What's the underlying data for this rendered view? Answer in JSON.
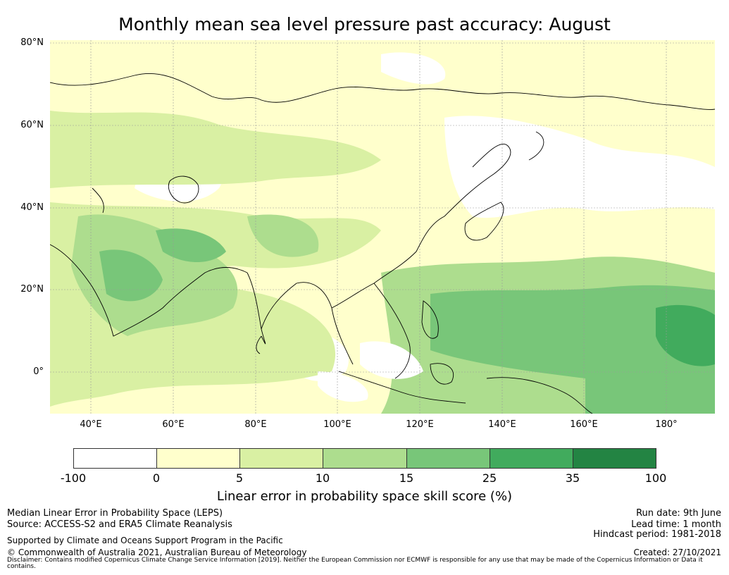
{
  "title": "Monthly mean sea level pressure past accuracy: August",
  "lat_labels": [
    "80°N",
    "60°N",
    "40°N",
    "20°N",
    "0°"
  ],
  "lon_labels": [
    "40°E",
    "60°E",
    "80°E",
    "100°E",
    "120°E",
    "140°E",
    "160°E",
    "180°"
  ],
  "colorbar": {
    "ticks": [
      "-100",
      "0",
      "5",
      "10",
      "15",
      "25",
      "35",
      "100"
    ],
    "colors": [
      "#ffffff",
      "#ffffcc",
      "#d9f0a3",
      "#addd8e",
      "#78c679",
      "#41ab5d",
      "#238443"
    ],
    "label": "Linear error in probability space skill score (%)"
  },
  "footer": {
    "left1": "Median Linear Error in Probability Space (LEPS)",
    "left2": "Source: ACCESS-S2 and ERA5 Climate Reanalysis",
    "left3": "Supported by Climate and Oceans Support Program in the Pacific",
    "left4": "© Commonwealth of Australia 2021, Australian Bureau of Meteorology",
    "right1": "Run date: 9th June",
    "right2": "Lead time: 1 month",
    "right3": "Hindcast period: 1981-2018",
    "right4": "Created: 27/10/2021",
    "disclaimer": "Disclaimer: Contains modified Copernicus Climate Change Service Information [2019]. Neither the European Commission nor ECMWF is responsible for any use that may be made of the Copernicus Information or Data it contains."
  }
}
